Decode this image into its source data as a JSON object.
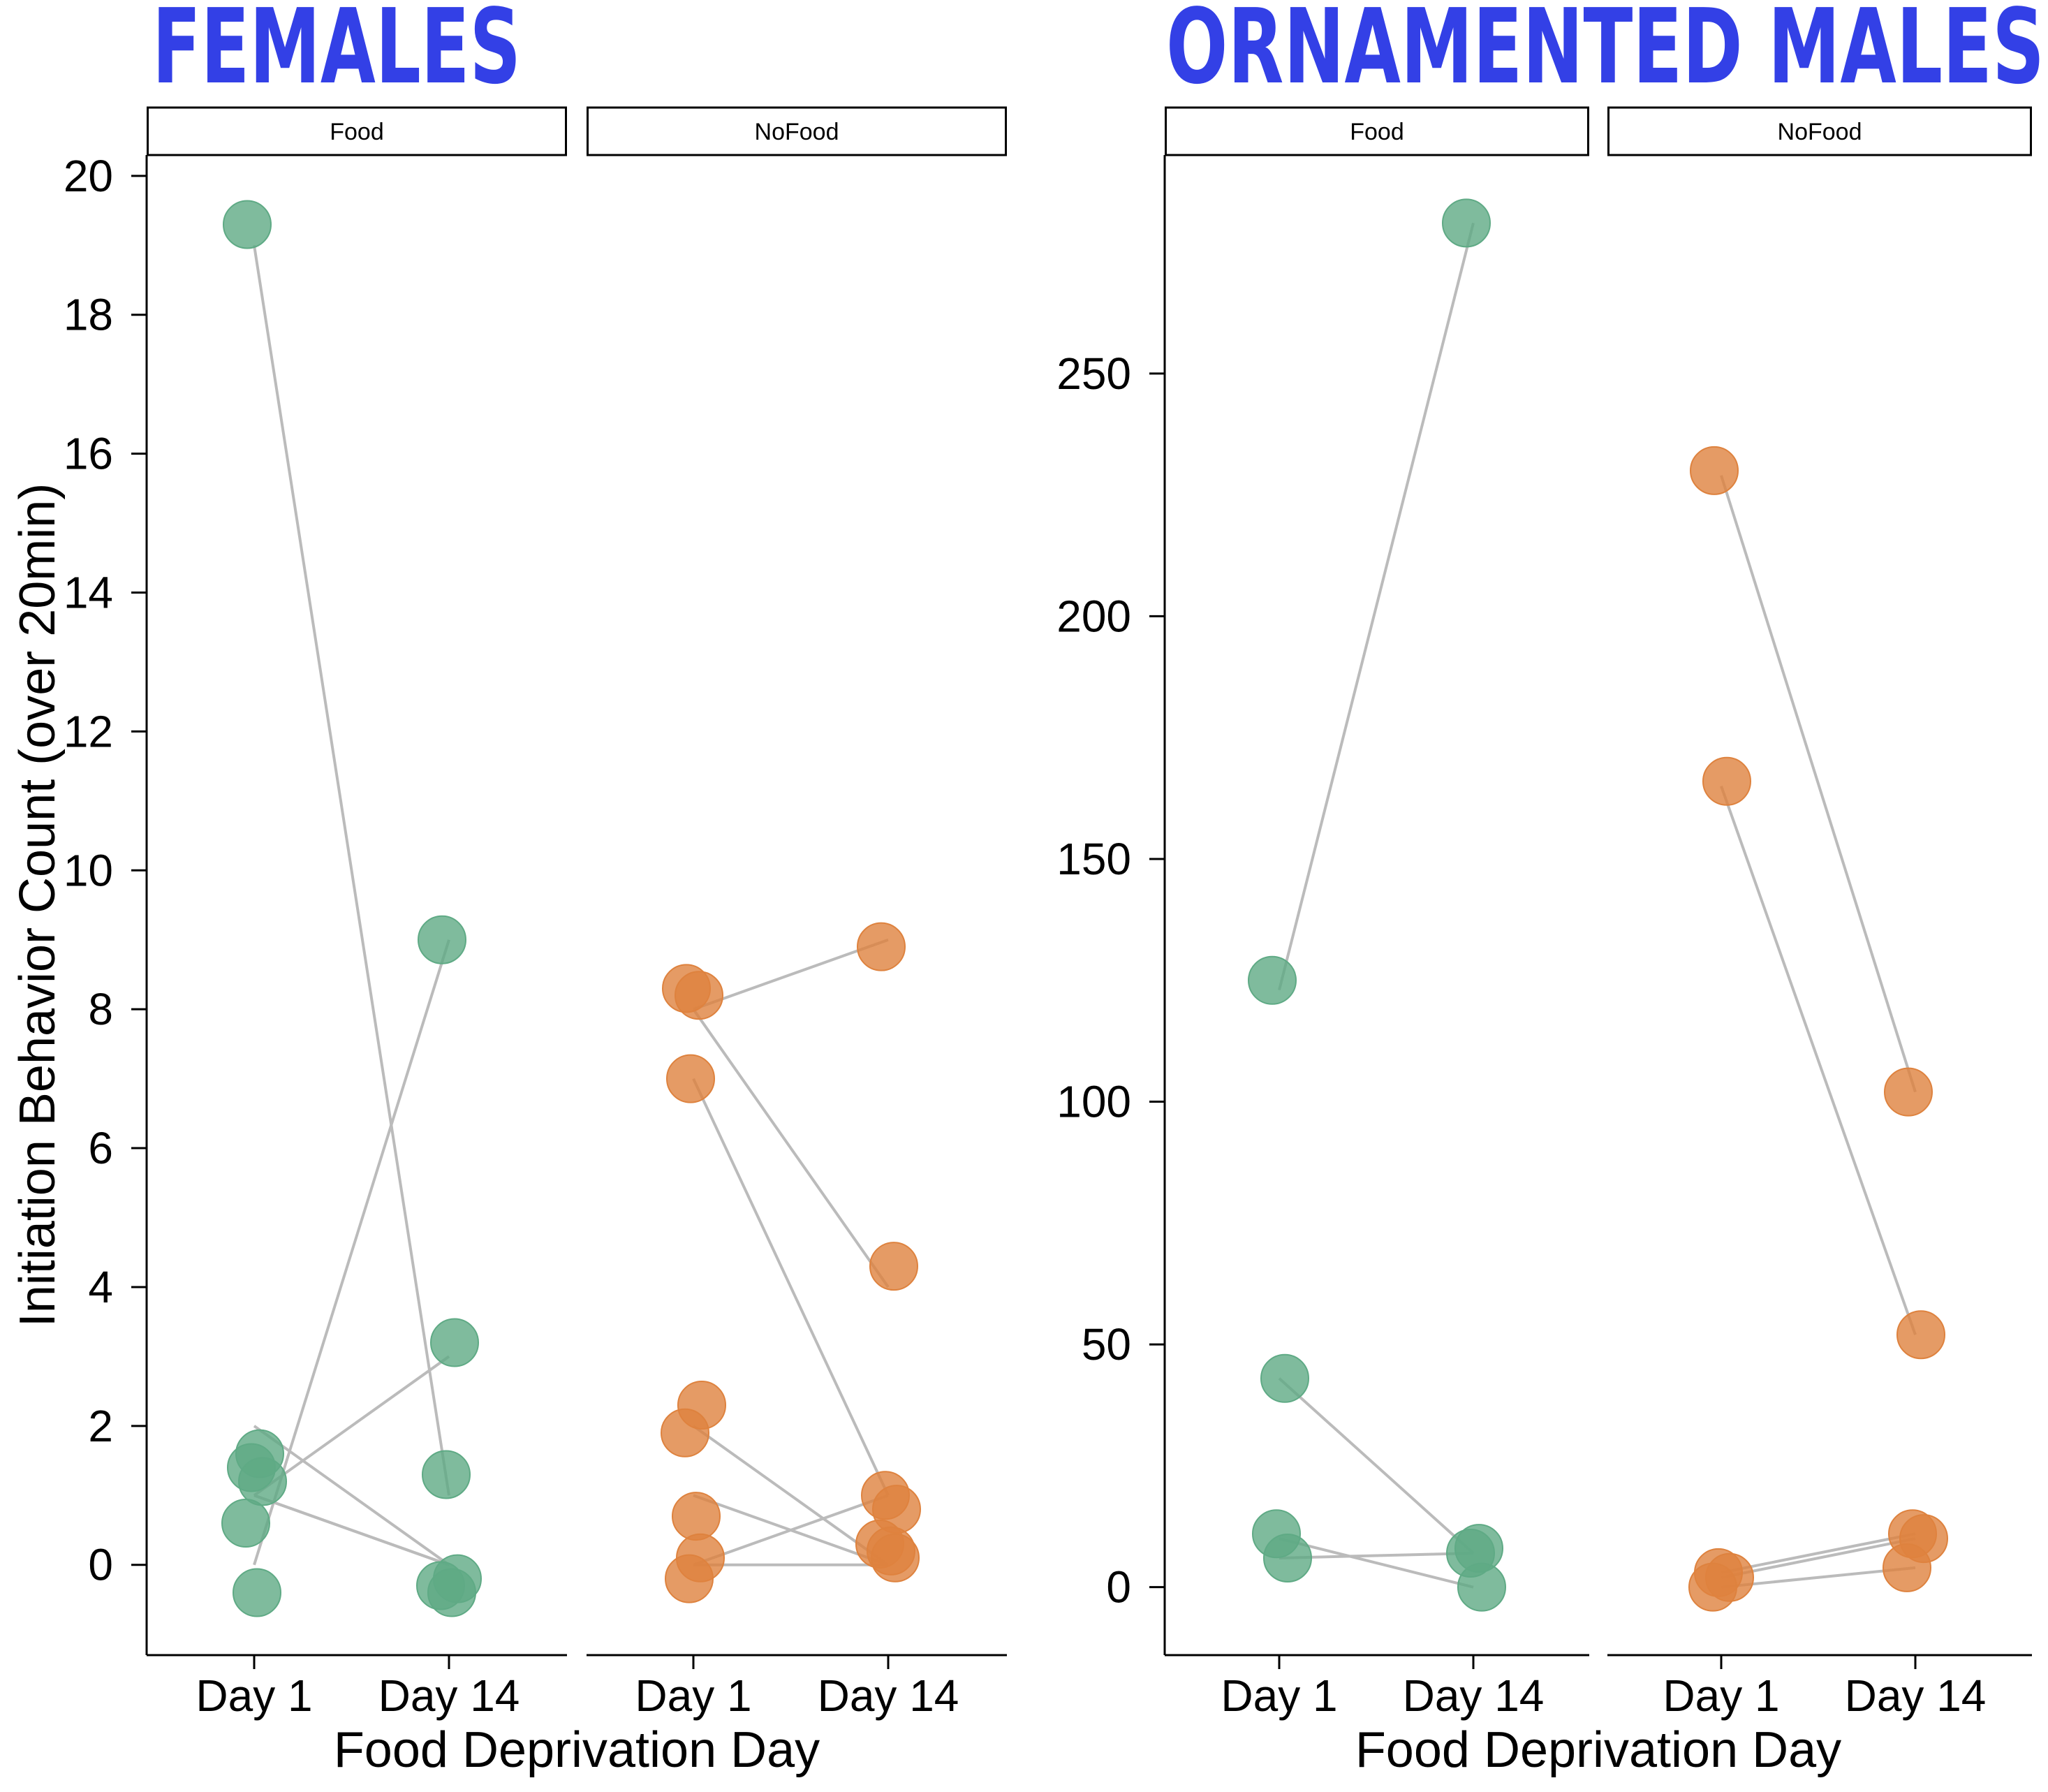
{
  "colors": {
    "title": "#3340E6",
    "food": "#5FAA85",
    "nofood": "#DE823E",
    "line": "#BBBBBB"
  },
  "chart_data": [
    {
      "type": "scatter",
      "title": "FEMALES",
      "ylabel": "Initiation Behavior Count (over 20min)",
      "xlabel": "Food Deprivation Day",
      "categories": [
        "Day 1",
        "Day 14"
      ],
      "ylim": [
        -1.3,
        20.3
      ],
      "yticks": [
        "0",
        "2",
        "4",
        "6",
        "8",
        "10",
        "12",
        "14",
        "16",
        "18",
        "20"
      ],
      "panels": [
        {
          "strip": "Food",
          "color_key": "food",
          "points": [
            {
              "x": "Day 1",
              "y": 19.3
            },
            {
              "x": "Day 1",
              "y": 1.6
            },
            {
              "x": "Day 1",
              "y": 1.4
            },
            {
              "x": "Day 1",
              "y": 1.2
            },
            {
              "x": "Day 1",
              "y": 0.6
            },
            {
              "x": "Day 1",
              "y": -0.4
            },
            {
              "x": "Day 14",
              "y": 9.0
            },
            {
              "x": "Day 14",
              "y": 3.2
            },
            {
              "x": "Day 14",
              "y": 1.3
            },
            {
              "x": "Day 14",
              "y": -0.2
            },
            {
              "x": "Day 14",
              "y": -0.3
            },
            {
              "x": "Day 14",
              "y": -0.4
            }
          ],
          "lines": [
            [
              19.0,
              1.0
            ],
            [
              2.0,
              0.0
            ],
            [
              1.0,
              3.0
            ],
            [
              1.0,
              0.0
            ],
            [
              0.0,
              9.0
            ],
            [
              1.0,
              0.0
            ]
          ]
        },
        {
          "strip": "NoFood",
          "color_key": "nofood",
          "points": [
            {
              "x": "Day 1",
              "y": 8.3
            },
            {
              "x": "Day 1",
              "y": 8.2
            },
            {
              "x": "Day 1",
              "y": 7.0
            },
            {
              "x": "Day 1",
              "y": 2.3
            },
            {
              "x": "Day 1",
              "y": 1.9
            },
            {
              "x": "Day 1",
              "y": 0.7
            },
            {
              "x": "Day 1",
              "y": 0.1
            },
            {
              "x": "Day 1",
              "y": -0.2
            },
            {
              "x": "Day 14",
              "y": 8.9
            },
            {
              "x": "Day 14",
              "y": 4.3
            },
            {
              "x": "Day 14",
              "y": 1.0
            },
            {
              "x": "Day 14",
              "y": 0.8
            },
            {
              "x": "Day 14",
              "y": 0.3
            },
            {
              "x": "Day 14",
              "y": 0.2
            },
            {
              "x": "Day 14",
              "y": 0.1
            }
          ],
          "lines": [
            [
              8.0,
              9.0
            ],
            [
              8.0,
              4.0
            ],
            [
              7.0,
              1.0
            ],
            [
              2.0,
              0.0
            ],
            [
              1.0,
              0.0
            ],
            [
              0.0,
              1.0
            ],
            [
              0.0,
              0.0
            ]
          ]
        }
      ]
    },
    {
      "type": "scatter",
      "title": "ORNAMENTED MALES",
      "ylabel": "",
      "xlabel": "Food Deprivation Day",
      "categories": [
        "Day 1",
        "Day 14"
      ],
      "ylim": [
        -14,
        295
      ],
      "yticks": [
        "0",
        "50",
        "100",
        "150",
        "200",
        "250"
      ],
      "panels": [
        {
          "strip": "Food",
          "color_key": "food",
          "points": [
            {
              "x": "Day 1",
              "y": 125
            },
            {
              "x": "Day 1",
              "y": 43
            },
            {
              "x": "Day 1",
              "y": 11
            },
            {
              "x": "Day 1",
              "y": 6
            },
            {
              "x": "Day 14",
              "y": 281
            },
            {
              "x": "Day 14",
              "y": 8
            },
            {
              "x": "Day 14",
              "y": 7
            },
            {
              "x": "Day 14",
              "y": 0
            }
          ],
          "lines": [
            [
              123,
              281
            ],
            [
              43,
              7
            ],
            [
              10,
              0
            ],
            [
              6,
              7
            ]
          ]
        },
        {
          "strip": "NoFood",
          "color_key": "nofood",
          "points": [
            {
              "x": "Day 1",
              "y": 230
            },
            {
              "x": "Day 1",
              "y": 166
            },
            {
              "x": "Day 1",
              "y": 3
            },
            {
              "x": "Day 1",
              "y": 2
            },
            {
              "x": "Day 1",
              "y": 0
            },
            {
              "x": "Day 14",
              "y": 102
            },
            {
              "x": "Day 14",
              "y": 52
            },
            {
              "x": "Day 14",
              "y": 11
            },
            {
              "x": "Day 14",
              "y": 10
            },
            {
              "x": "Day 14",
              "y": 4
            }
          ],
          "lines": [
            [
              229,
              102
            ],
            [
              165,
              52
            ],
            [
              3,
              11
            ],
            [
              2,
              10
            ],
            [
              0,
              4
            ]
          ]
        }
      ]
    }
  ]
}
